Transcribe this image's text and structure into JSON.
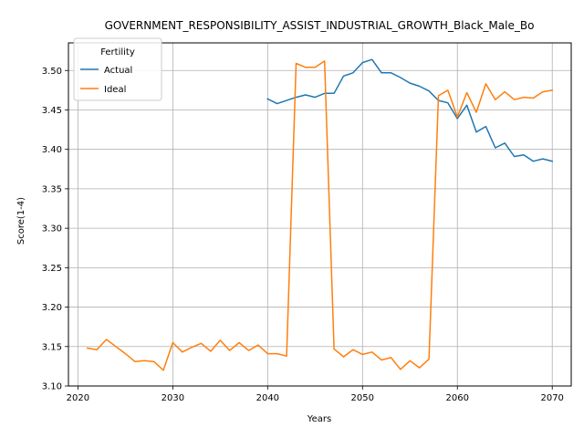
{
  "chart_data": {
    "type": "line",
    "title": "GOVERNMENT_RESPONSIBILITY_ASSIST_INDUSTRIAL_GROWTH_Black_Male_Bo",
    "xlabel": "Years",
    "ylabel": "Score(1-4)",
    "xlim": [
      2019,
      2072
    ],
    "ylim": [
      3.1,
      3.535
    ],
    "xticks": [
      2020,
      2030,
      2040,
      2050,
      2060,
      2070
    ],
    "yticks": [
      3.1,
      3.15,
      3.2,
      3.25,
      3.3,
      3.35,
      3.4,
      3.45,
      3.5
    ],
    "ytick_labels": [
      "3.10",
      "3.15",
      "3.20",
      "3.25",
      "3.30",
      "3.35",
      "3.40",
      "3.45",
      "3.50"
    ],
    "grid": true,
    "legend": {
      "title": "Fertility",
      "placement": "top-left"
    },
    "series": [
      {
        "name": "Actual",
        "color": "#1f77b4",
        "x": [
          2040,
          2041,
          2042,
          2043,
          2044,
          2045,
          2046,
          2047,
          2048,
          2049,
          2050,
          2051,
          2052,
          2053,
          2054,
          2055,
          2056,
          2057,
          2058,
          2059,
          2060,
          2061,
          2062,
          2063,
          2064,
          2065,
          2066,
          2067,
          2068,
          2069,
          2070
        ],
        "y": [
          3.464,
          3.458,
          3.462,
          3.466,
          3.469,
          3.466,
          3.471,
          3.471,
          3.493,
          3.497,
          3.51,
          3.514,
          3.497,
          3.497,
          3.491,
          3.484,
          3.48,
          3.474,
          3.462,
          3.459,
          3.439,
          3.456,
          3.422,
          3.429,
          3.402,
          3.408,
          3.391,
          3.393,
          3.385,
          3.388,
          3.385
        ]
      },
      {
        "name": "Ideal",
        "color": "#ff7f0e",
        "x": [
          2021,
          2022,
          2023,
          2024,
          2025,
          2026,
          2027,
          2028,
          2029,
          2030,
          2031,
          2032,
          2033,
          2034,
          2035,
          2036,
          2037,
          2038,
          2039,
          2040,
          2041,
          2042,
          2043,
          2044,
          2045,
          2046,
          2047,
          2048,
          2049,
          2050,
          2051,
          2052,
          2053,
          2054,
          2055,
          2056,
          2057,
          2058,
          2059,
          2060,
          2061,
          2062,
          2063,
          2064,
          2065,
          2066,
          2067,
          2068,
          2069,
          2070
        ],
        "y": [
          3.148,
          3.146,
          3.159,
          3.15,
          3.141,
          3.131,
          3.132,
          3.131,
          3.12,
          3.155,
          3.143,
          3.149,
          3.154,
          3.144,
          3.158,
          3.145,
          3.155,
          3.145,
          3.152,
          3.141,
          3.141,
          3.138,
          3.509,
          3.504,
          3.504,
          3.512,
          3.147,
          3.137,
          3.146,
          3.14,
          3.143,
          3.133,
          3.136,
          3.121,
          3.132,
          3.123,
          3.134,
          3.468,
          3.475,
          3.441,
          3.472,
          3.447,
          3.483,
          3.463,
          3.473,
          3.463,
          3.466,
          3.465,
          3.473,
          3.475
        ]
      }
    ]
  }
}
